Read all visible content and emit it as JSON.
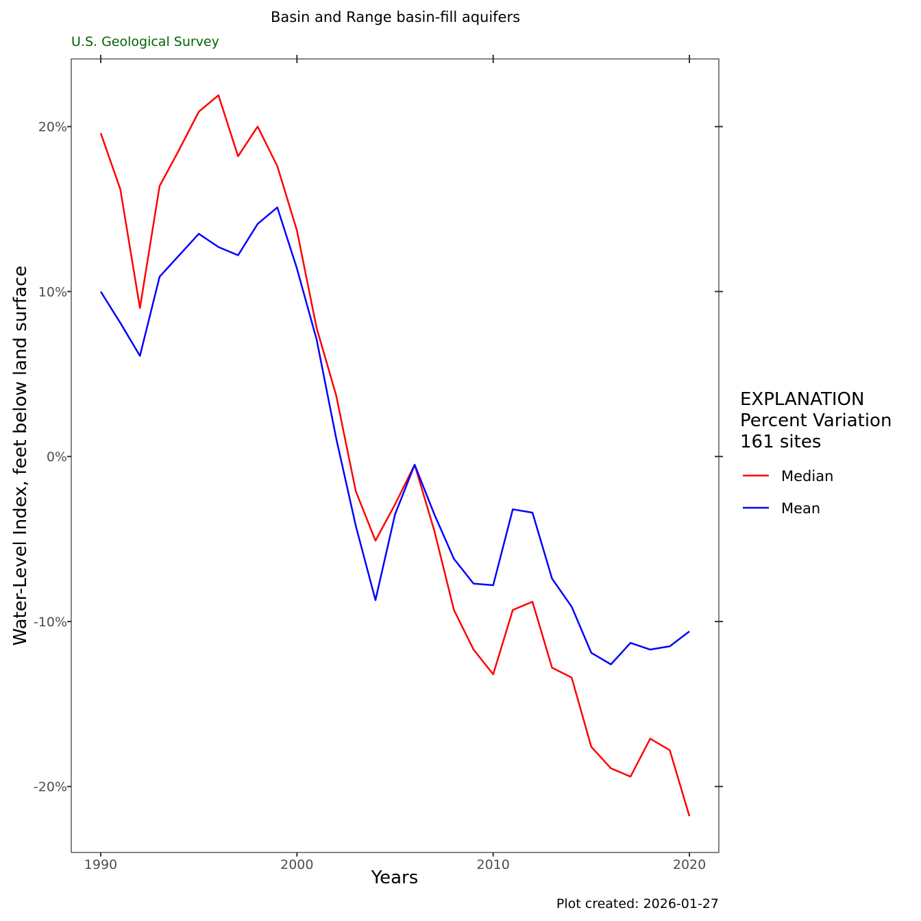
{
  "chart_data": {
    "type": "line",
    "title": "Basin and Range basin-fill aquifers",
    "subtitle": "U.S. Geological Survey",
    "xlabel": "Years",
    "ylabel": "Water-Level Index, feet below land surface",
    "caption": "Plot created: 2026-01-27",
    "xlim": [
      1988.5,
      2021.5
    ],
    "ylim": [
      -24.0,
      24.1
    ],
    "x_ticks": [
      1990,
      2000,
      2010,
      2020
    ],
    "x_tick_labels": [
      "1990",
      "2000",
      "2010",
      "2020"
    ],
    "y_ticks": [
      -20,
      -10,
      0,
      10,
      20
    ],
    "y_tick_labels": [
      "-20%",
      "-10%",
      "0%",
      "10%",
      "20%"
    ],
    "grid": false,
    "legend": {
      "placement": "right",
      "title_lines": [
        "EXPLANATION",
        "Percent Variation",
        "161 sites"
      ],
      "entries": [
        "Median",
        "Mean"
      ]
    },
    "x": [
      1990,
      1991,
      1992,
      1993,
      1994,
      1995,
      1996,
      1997,
      1998,
      1999,
      2000,
      2001,
      2002,
      2003,
      2004,
      2005,
      2006,
      2007,
      2008,
      2009,
      2010,
      2011,
      2012,
      2013,
      2014,
      2015,
      2016,
      2017,
      2018,
      2019,
      2020
    ],
    "series": [
      {
        "name": "Median",
        "color": "#ff0000",
        "values": [
          19.6,
          16.2,
          9.0,
          16.4,
          18.6,
          20.9,
          21.9,
          18.2,
          20.0,
          17.6,
          13.7,
          7.8,
          3.7,
          -2.1,
          -5.1,
          -2.9,
          -0.5,
          -4.5,
          -9.3,
          -11.7,
          -13.2,
          -9.3,
          -8.8,
          -12.8,
          -13.4,
          -17.6,
          -18.9,
          -19.4,
          -17.1,
          -17.8,
          -21.8
        ]
      },
      {
        "name": "Mean",
        "color": "#0000ff",
        "values": [
          10.0,
          8.1,
          6.1,
          10.9,
          12.2,
          13.5,
          12.7,
          12.2,
          14.1,
          15.1,
          11.4,
          7.1,
          1.1,
          -4.2,
          -8.7,
          -3.5,
          -0.5,
          -3.5,
          -6.2,
          -7.7,
          -7.8,
          -3.2,
          -3.4,
          -7.4,
          -9.1,
          -11.9,
          -12.6,
          -11.3,
          -11.7,
          -11.5,
          -10.6
        ]
      }
    ]
  }
}
